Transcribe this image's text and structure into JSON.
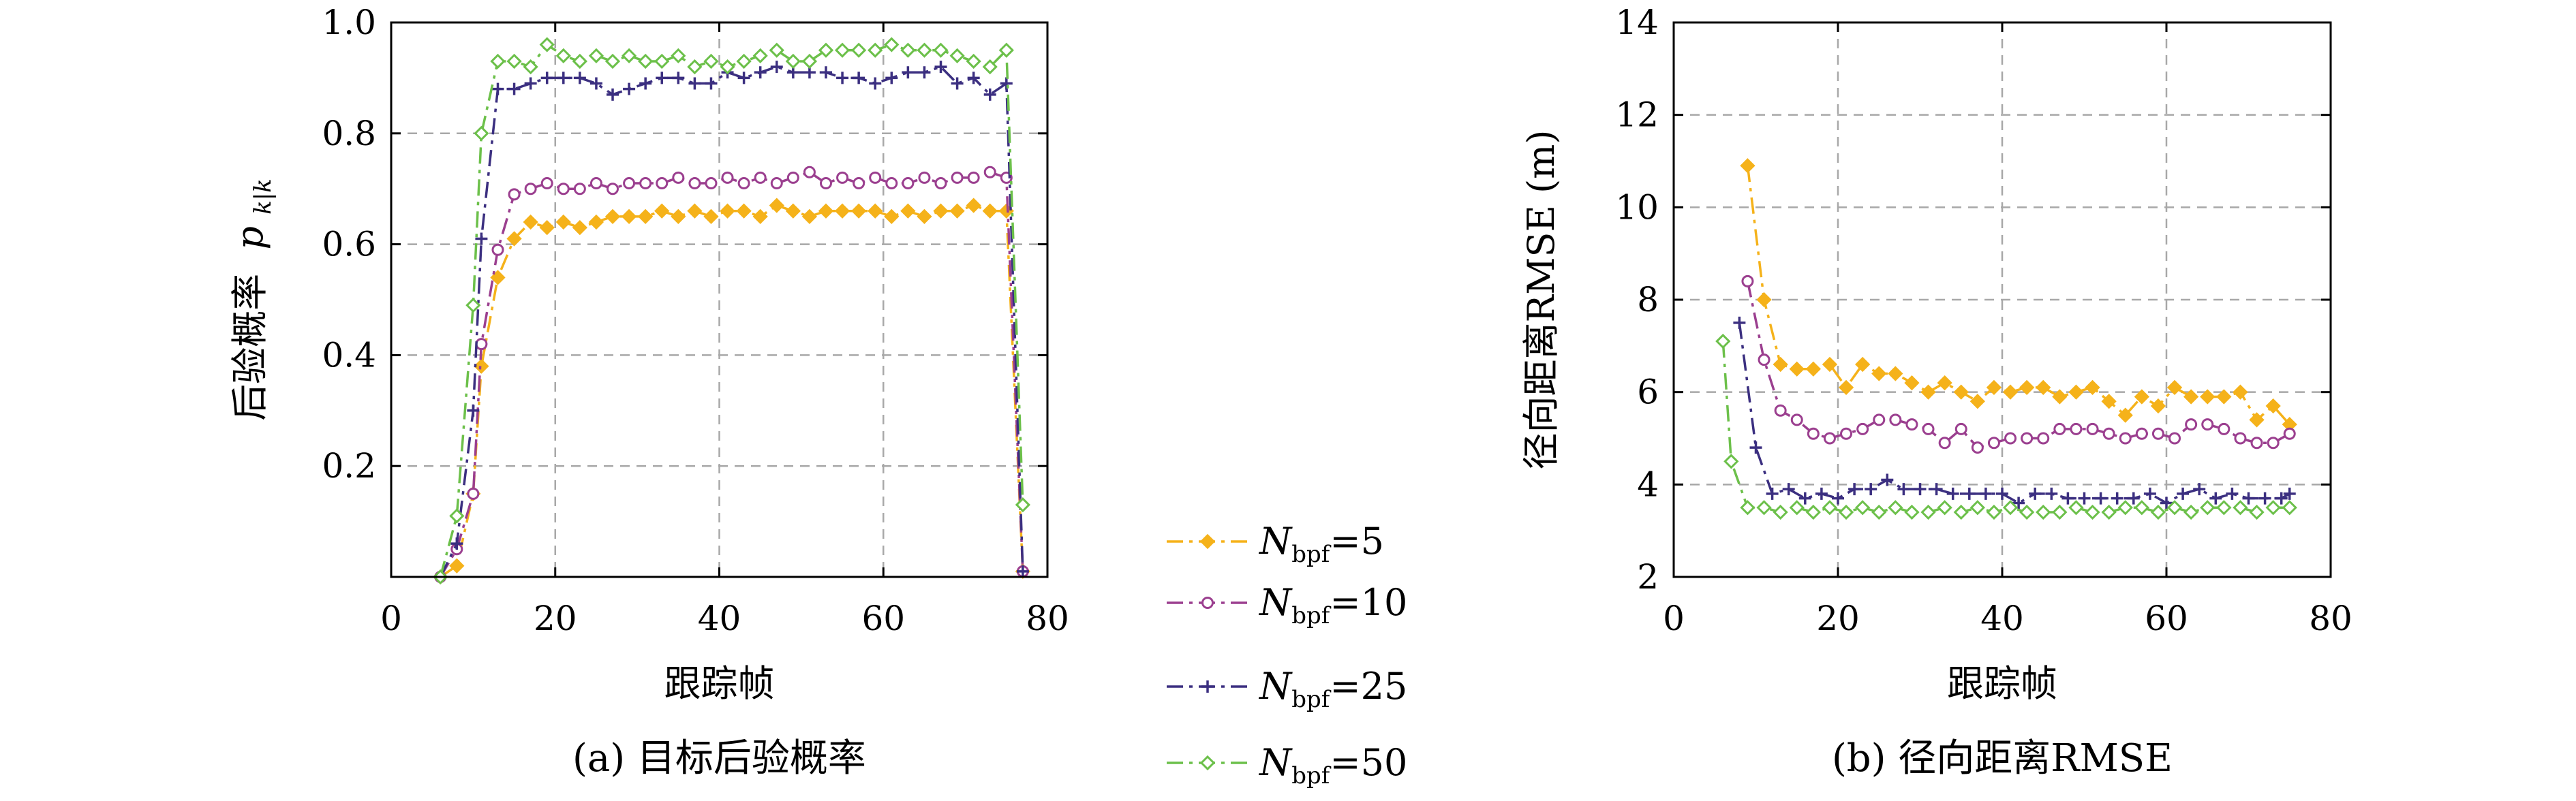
{
  "chart_data": [
    {
      "type": "line",
      "caption": "(a) 目标后验概率",
      "xlabel": "跟踪帧",
      "ylabel": "后验概率",
      "ylabel_symbol": "p",
      "ylabel_subscript": "k|k",
      "xlim": [
        0,
        80
      ],
      "ylim": [
        0,
        1.0
      ],
      "xticks": [
        0,
        20,
        40,
        60,
        80
      ],
      "xtick_labels": [
        "0",
        "20",
        "40",
        "60",
        "80"
      ],
      "yticks": [
        0.2,
        0.4,
        0.6,
        0.8,
        1.0
      ],
      "ytick_labels": [
        "0.2",
        "0.4",
        "0.6",
        "0.8",
        "1.0"
      ],
      "grid": true,
      "series": [
        {
          "key": "N5",
          "color": "#f5b21a",
          "marker": "filled-diamond",
          "dash": "24,9,5,9",
          "x": [
            6,
            8,
            10,
            11,
            13,
            15,
            17,
            19,
            21,
            23,
            25,
            27,
            29,
            31,
            33,
            35,
            37,
            39,
            41,
            43,
            45,
            47,
            49,
            51,
            53,
            55,
            57,
            59,
            61,
            63,
            65,
            67,
            69,
            71,
            73,
            75,
            77
          ],
          "y": [
            0.0,
            0.02,
            0.15,
            0.38,
            0.54,
            0.61,
            0.64,
            0.63,
            0.64,
            0.63,
            0.64,
            0.65,
            0.65,
            0.65,
            0.66,
            0.65,
            0.66,
            0.65,
            0.66,
            0.66,
            0.65,
            0.67,
            0.66,
            0.65,
            0.66,
            0.66,
            0.66,
            0.66,
            0.65,
            0.66,
            0.65,
            0.66,
            0.66,
            0.67,
            0.66,
            0.66,
            0.01
          ]
        },
        {
          "key": "N10",
          "color": "#9b3f8f",
          "marker": "open-circle",
          "dash": "24,9,5,9",
          "x": [
            6,
            8,
            10,
            11,
            13,
            15,
            17,
            19,
            21,
            23,
            25,
            27,
            29,
            31,
            33,
            35,
            37,
            39,
            41,
            43,
            45,
            47,
            49,
            51,
            53,
            55,
            57,
            59,
            61,
            63,
            65,
            67,
            69,
            71,
            73,
            75,
            77
          ],
          "y": [
            0.0,
            0.05,
            0.15,
            0.42,
            0.59,
            0.69,
            0.7,
            0.71,
            0.7,
            0.7,
            0.71,
            0.7,
            0.71,
            0.71,
            0.71,
            0.72,
            0.71,
            0.71,
            0.72,
            0.71,
            0.72,
            0.71,
            0.72,
            0.73,
            0.71,
            0.72,
            0.71,
            0.72,
            0.71,
            0.71,
            0.72,
            0.71,
            0.72,
            0.72,
            0.73,
            0.72,
            0.01
          ]
        },
        {
          "key": "N25",
          "color": "#3b2f80",
          "marker": "plus",
          "dash": "24,9,5,9",
          "x": [
            6,
            8,
            10,
            11,
            13,
            15,
            17,
            19,
            21,
            23,
            25,
            27,
            29,
            31,
            33,
            35,
            37,
            39,
            41,
            43,
            45,
            47,
            49,
            51,
            53,
            55,
            57,
            59,
            61,
            63,
            65,
            67,
            69,
            71,
            73,
            75,
            77
          ],
          "y": [
            0.0,
            0.06,
            0.3,
            0.61,
            0.88,
            0.88,
            0.89,
            0.9,
            0.9,
            0.9,
            0.89,
            0.87,
            0.88,
            0.89,
            0.9,
            0.9,
            0.89,
            0.89,
            0.91,
            0.9,
            0.91,
            0.92,
            0.91,
            0.91,
            0.91,
            0.9,
            0.9,
            0.89,
            0.9,
            0.91,
            0.91,
            0.92,
            0.89,
            0.9,
            0.87,
            0.89,
            0.01
          ]
        },
        {
          "key": "N50",
          "color": "#6cc04a",
          "marker": "open-diamond",
          "dash": "24,9,5,9",
          "x": [
            6,
            8,
            10,
            11,
            13,
            15,
            17,
            19,
            21,
            23,
            25,
            27,
            29,
            31,
            33,
            35,
            37,
            39,
            41,
            43,
            45,
            47,
            49,
            51,
            53,
            55,
            57,
            59,
            61,
            63,
            65,
            67,
            69,
            71,
            73,
            75,
            77
          ],
          "y": [
            0.0,
            0.11,
            0.49,
            0.8,
            0.93,
            0.93,
            0.92,
            0.96,
            0.94,
            0.93,
            0.94,
            0.93,
            0.94,
            0.93,
            0.93,
            0.94,
            0.92,
            0.93,
            0.92,
            0.93,
            0.94,
            0.95,
            0.93,
            0.93,
            0.95,
            0.95,
            0.95,
            0.95,
            0.96,
            0.95,
            0.95,
            0.95,
            0.94,
            0.93,
            0.92,
            0.95,
            0.13
          ]
        }
      ]
    },
    {
      "type": "line",
      "caption": "(b) 径向距离RMSE",
      "xlabel": "跟踪帧",
      "ylabel": "径向距离RMSE (m)",
      "xlim": [
        0,
        80
      ],
      "ylim": [
        2,
        14
      ],
      "xticks": [
        0,
        20,
        40,
        60,
        80
      ],
      "xtick_labels": [
        "0",
        "20",
        "40",
        "60",
        "80"
      ],
      "yticks": [
        2,
        4,
        6,
        8,
        10,
        12,
        14
      ],
      "ytick_labels": [
        "2",
        "4",
        "6",
        "8",
        "10",
        "12",
        "14"
      ],
      "grid": true,
      "series": [
        {
          "key": "N5",
          "color": "#f5b21a",
          "marker": "filled-diamond",
          "dash": "24,9,5,9",
          "x": [
            9,
            11,
            13,
            15,
            17,
            19,
            21,
            23,
            25,
            27,
            29,
            31,
            33,
            35,
            37,
            39,
            41,
            43,
            45,
            47,
            49,
            51,
            53,
            55,
            57,
            59,
            61,
            63,
            65,
            67,
            69,
            71,
            73,
            75
          ],
          "y": [
            10.9,
            8.0,
            6.6,
            6.5,
            6.5,
            6.6,
            6.1,
            6.6,
            6.4,
            6.4,
            6.2,
            6.0,
            6.2,
            6.0,
            5.8,
            6.1,
            6.0,
            6.1,
            6.1,
            5.9,
            6.0,
            6.1,
            5.8,
            5.5,
            5.9,
            5.7,
            6.1,
            5.9,
            5.9,
            5.9,
            6.0,
            5.4,
            5.7,
            5.3
          ]
        },
        {
          "key": "N10",
          "color": "#9b3f8f",
          "marker": "open-circle",
          "dash": "24,9,5,9",
          "x": [
            9,
            11,
            13,
            15,
            17,
            19,
            21,
            23,
            25,
            27,
            29,
            31,
            33,
            35,
            37,
            39,
            41,
            43,
            45,
            47,
            49,
            51,
            53,
            55,
            57,
            59,
            61,
            63,
            65,
            67,
            69,
            71,
            73,
            75
          ],
          "y": [
            8.4,
            6.7,
            5.6,
            5.4,
            5.1,
            5.0,
            5.1,
            5.2,
            5.4,
            5.4,
            5.3,
            5.2,
            4.9,
            5.2,
            4.8,
            4.9,
            5.0,
            5.0,
            5.0,
            5.2,
            5.2,
            5.2,
            5.1,
            5.0,
            5.1,
            5.1,
            5.0,
            5.3,
            5.3,
            5.2,
            5.0,
            4.9,
            4.9,
            5.1
          ]
        },
        {
          "key": "N25",
          "color": "#3b2f80",
          "marker": "plus",
          "dash": "24,9,5,9",
          "x": [
            8,
            10,
            12,
            14,
            16,
            18,
            20,
            22,
            24,
            26,
            28,
            30,
            32,
            34,
            36,
            38,
            40,
            42,
            44,
            46,
            48,
            50,
            52,
            54,
            56,
            58,
            60,
            62,
            64,
            66,
            68,
            70,
            72,
            74,
            75
          ],
          "y": [
            7.5,
            4.8,
            3.8,
            3.9,
            3.7,
            3.8,
            3.7,
            3.9,
            3.9,
            4.1,
            3.9,
            3.9,
            3.9,
            3.8,
            3.8,
            3.8,
            3.8,
            3.6,
            3.8,
            3.8,
            3.7,
            3.7,
            3.7,
            3.7,
            3.7,
            3.8,
            3.6,
            3.8,
            3.9,
            3.7,
            3.8,
            3.7,
            3.7,
            3.7,
            3.8
          ]
        },
        {
          "key": "N50",
          "color": "#6cc04a",
          "marker": "open-diamond",
          "dash": "24,9,5,9",
          "x": [
            6,
            7,
            9,
            11,
            13,
            15,
            17,
            19,
            21,
            23,
            25,
            27,
            29,
            31,
            33,
            35,
            37,
            39,
            41,
            43,
            45,
            47,
            49,
            51,
            53,
            55,
            57,
            59,
            61,
            63,
            65,
            67,
            69,
            71,
            73,
            75
          ],
          "y": [
            7.1,
            4.5,
            3.5,
            3.5,
            3.4,
            3.5,
            3.4,
            3.5,
            3.4,
            3.5,
            3.4,
            3.5,
            3.4,
            3.4,
            3.5,
            3.4,
            3.5,
            3.4,
            3.5,
            3.4,
            3.4,
            3.4,
            3.5,
            3.4,
            3.4,
            3.5,
            3.5,
            3.4,
            3.5,
            3.4,
            3.5,
            3.5,
            3.5,
            3.4,
            3.5,
            3.5
          ]
        }
      ]
    }
  ],
  "legend": {
    "placement": "between-panels",
    "entries": [
      {
        "key": "N5",
        "symbol": "N",
        "subscript": "bpf",
        "value": "=5",
        "color": "#f5b21a",
        "marker": "filled-diamond"
      },
      {
        "key": "N10",
        "symbol": "N",
        "subscript": "bpf",
        "value": "=10",
        "color": "#9b3f8f",
        "marker": "open-circle"
      },
      {
        "key": "N25",
        "symbol": "N",
        "subscript": "bpf",
        "value": "=25",
        "color": "#3b2f80",
        "marker": "plus"
      },
      {
        "key": "N50",
        "symbol": "N",
        "subscript": "bpf",
        "value": "=50",
        "color": "#6cc04a",
        "marker": "open-diamond"
      }
    ]
  }
}
